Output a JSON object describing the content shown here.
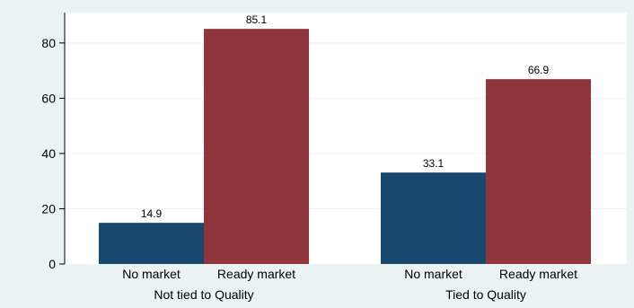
{
  "chart_data": {
    "type": "bar",
    "groups": [
      {
        "label": "Not tied to Quality",
        "bars": [
          {
            "label": "No market",
            "value": 14.9,
            "value_label": "14.9"
          },
          {
            "label": "Ready market",
            "value": 85.1,
            "value_label": "85.1"
          }
        ]
      },
      {
        "label": "Tied to Quality",
        "bars": [
          {
            "label": "No market",
            "value": 33.1,
            "value_label": "33.1"
          },
          {
            "label": "Ready market",
            "value": 66.9,
            "value_label": "66.9"
          }
        ]
      }
    ],
    "colors": {
      "No market": "#1a476f",
      "Ready market": "#90353b"
    },
    "ylim": [
      0,
      91
    ],
    "yticks": [
      0,
      20,
      40,
      60,
      80
    ],
    "ytick_labels": [
      "0",
      "20",
      "40",
      "60",
      "80"
    ],
    "grid": true,
    "legend": "none",
    "title": "",
    "xlabel": "",
    "ylabel": ""
  }
}
